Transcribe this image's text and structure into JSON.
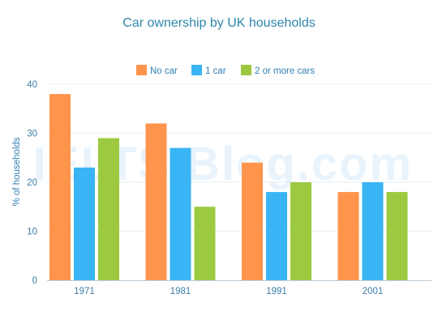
{
  "watermark_text": "IELTS Blog.com",
  "chart_data": {
    "type": "bar",
    "title": "Car ownership by UK households",
    "xlabel": "",
    "ylabel": "% of households",
    "ylim": [
      0,
      40
    ],
    "yticks": [
      0,
      10,
      20,
      30,
      40
    ],
    "grid": true,
    "legend_position": "top-center",
    "categories": [
      "1971",
      "1981",
      "1991",
      "2001"
    ],
    "series": [
      {
        "name": "No car",
        "color": "#ff944d",
        "values": [
          38,
          32,
          24,
          18
        ]
      },
      {
        "name": "1 car",
        "color": "#39b4f4",
        "values": [
          23,
          27,
          18,
          20
        ]
      },
      {
        "name": "2 or more cars",
        "color": "#9dc940",
        "values": [
          29,
          15,
          20,
          18
        ]
      }
    ]
  }
}
